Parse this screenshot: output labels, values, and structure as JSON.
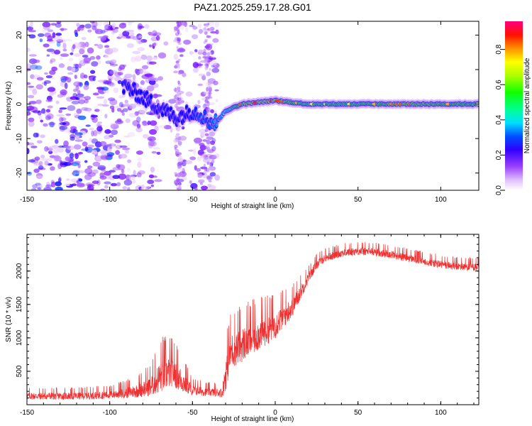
{
  "figure_title": "PAZ1.2025.259.17.28.G01",
  "chart_data": [
    {
      "type": "heatmap",
      "title": "",
      "xlabel": "Height of straight line (km)",
      "ylabel": "Frequency (Hz)",
      "xlim": [
        -150,
        123
      ],
      "ylim": [
        -25,
        24
      ],
      "xticks": [
        -150,
        -100,
        -50,
        0,
        50,
        100
      ],
      "yticks": [
        -20,
        -10,
        0,
        10,
        20
      ],
      "grid": false,
      "colorbar": {
        "label": "Normalized spectral amplitude",
        "range": [
          0,
          0.96
        ],
        "ticks": [
          0.0,
          0.2,
          0.4,
          0.6,
          0.8
        ],
        "colormap": [
          "#ffffff",
          "#e6c8ff",
          "#b070ff",
          "#7000ff",
          "#0000ff",
          "#0080ff",
          "#00ffff",
          "#00ff80",
          "#00ff00",
          "#80ff00",
          "#ffff00",
          "#ff8000",
          "#ff0000",
          "#ff0080"
        ]
      },
      "ridge": {
        "description_points_x": [
          -90,
          -80,
          -70,
          -60,
          -50,
          -45,
          -40,
          -37,
          -35,
          -30,
          -20,
          -10,
          0,
          10,
          20,
          50,
          80,
          123
        ],
        "frequency_y": [
          5,
          2,
          -1,
          -4,
          -2,
          -3,
          -5,
          -5.5,
          -5,
          -2,
          0,
          0.5,
          1,
          0.5,
          0,
          0,
          0,
          0
        ],
        "peak_amplitude": [
          0.3,
          0.35,
          0.35,
          0.3,
          0.4,
          0.45,
          0.45,
          0.5,
          0.5,
          0.6,
          0.85,
          0.88,
          0.88,
          0.8,
          0.75,
          0.75,
          0.85,
          0.75
        ]
      }
    },
    {
      "type": "line",
      "title": "",
      "xlabel": "Height of straight line (km)",
      "ylabel": "SNR (10 * v/v)",
      "xlim": [
        -150,
        123
      ],
      "ylim": [
        0,
        2550
      ],
      "xticks": [
        -150,
        -100,
        -50,
        0,
        50,
        100
      ],
      "yticks": [
        500,
        1000,
        1500,
        2000
      ],
      "grid": false,
      "series": [
        {
          "color": "#f03030",
          "envelope_x": [
            -150,
            -120,
            -100,
            -85,
            -75,
            -68,
            -62,
            -56,
            -50,
            -40,
            -32,
            -30,
            -27,
            -20,
            -10,
            0,
            10,
            20,
            25,
            30,
            40,
            50,
            60,
            70,
            80,
            90,
            100,
            110,
            123
          ],
          "envelope_y": [
            130,
            130,
            150,
            200,
            280,
            450,
            500,
            350,
            220,
            190,
            180,
            450,
            800,
            900,
            1050,
            1200,
            1450,
            1900,
            2100,
            2200,
            2270,
            2300,
            2290,
            2250,
            2200,
            2150,
            2100,
            2070,
            2060
          ],
          "noise": [
            80,
            80,
            90,
            140,
            220,
            380,
            320,
            250,
            120,
            90,
            100,
            350,
            380,
            380,
            350,
            300,
            220,
            120,
            100,
            90,
            90,
            90,
            90,
            90,
            90,
            90,
            90,
            90,
            90
          ]
        }
      ]
    }
  ]
}
